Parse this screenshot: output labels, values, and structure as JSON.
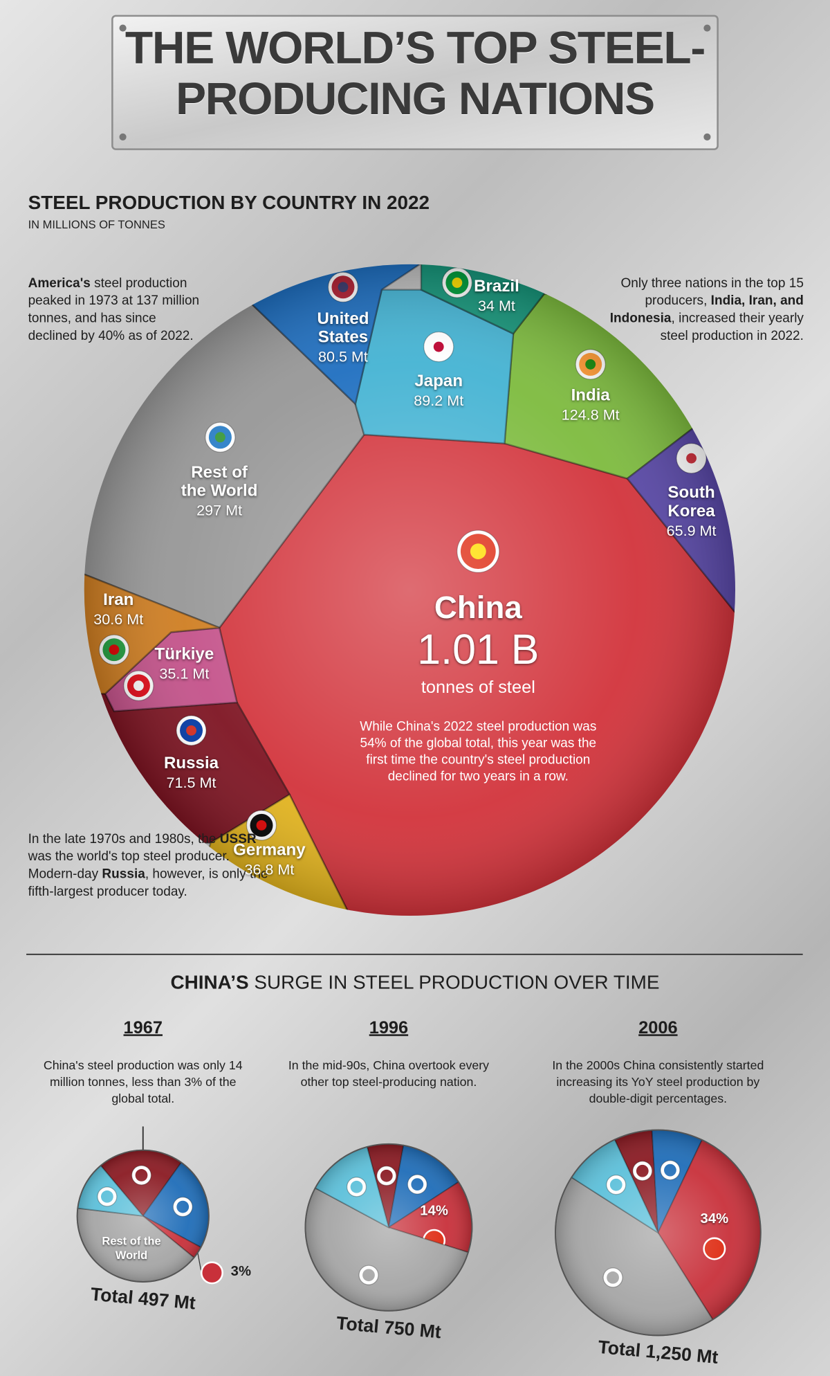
{
  "header": {
    "title": "THE WORLD’S TOP STEEL-PRODUCING NATIONS"
  },
  "chart_data": [
    {
      "type": "voronoi",
      "title": "STEEL PRODUCTION BY COUNTRY IN 2022",
      "subtitle": "IN MILLIONS OF TONNES",
      "categories": [
        "China",
        "Rest of the World",
        "India",
        "Japan",
        "United States",
        "Russia",
        "South Korea",
        "Germany",
        "Türkiye",
        "Brazil",
        "Iran"
      ],
      "values": [
        1010,
        297,
        124.8,
        89.2,
        80.5,
        71.5,
        65.9,
        36.8,
        35.1,
        34,
        30.6
      ],
      "value_labels": [
        "1.01 B",
        "297 Mt",
        "124.8 Mt",
        "89.2 Mt",
        "80.5 Mt",
        "71.5 Mt",
        "65.9 Mt",
        "36.8 Mt",
        "35.1 Mt",
        "34 Mt",
        "30.6 Mt"
      ],
      "colors": [
        "#d2333b",
        "#979797",
        "#7dbb3e",
        "#44b3d3",
        "#1f6fc0",
        "#7e1422",
        "#5847a6",
        "#e3b41e",
        "#c4528a",
        "#17957a",
        "#cf7e22"
      ],
      "china_caption": "tonnes of steel",
      "china_note": "While China's 2022 steel production was 54% of the global total, this year was the first time the country's steel production declined for two years in a row.",
      "left_note": [
        "America's",
        " steel production peaked in 1973 at 137 million tonnes, and has since declined by 40% as of 2022."
      ],
      "right_note": [
        "Only three nations in the top 15 producers, ",
        "India, Iran, and Indonesia",
        ", increased their yearly steel production in 2022."
      ],
      "bottom_note": [
        "In the late 1970s and 1980s, the ",
        "USSR",
        " was the world's top steel producer. Modern-day ",
        "Russia",
        ", however, is only the fifth-largest producer today."
      ]
    },
    {
      "type": "pie",
      "title": "1967",
      "subtitle": "China's steel production was only 14 million tonnes, less than 3% of the global total.",
      "categories": [
        null,
        null,
        null,
        "Rest of the World",
        null
      ],
      "values": [
        21,
        23,
        3,
        41,
        12
      ],
      "value_labels": [
        null,
        null,
        "3%",
        null,
        null
      ],
      "colors": [
        "#8a1a22",
        "#1f6db8",
        "#c8303a",
        "#a6a6a6",
        "#5cc0da"
      ],
      "total_label": "Total 497 Mt"
    },
    {
      "type": "pie",
      "title": "1996",
      "subtitle": "In the mid-90s, China overtook every other top steel-producing nation.",
      "categories": [
        null,
        null,
        null,
        null,
        null
      ],
      "values": [
        7,
        13,
        14,
        53,
        13
      ],
      "value_labels": [
        null,
        null,
        "14%",
        null,
        null
      ],
      "colors": [
        "#8a1a22",
        "#1f6db8",
        "#c8303a",
        "#a6a6a6",
        "#5cc0da"
      ],
      "total_label": "Total 750 Mt"
    },
    {
      "type": "pie",
      "title": "2006",
      "subtitle": "In the 2000s China consistently started increasing its YoY steel production by double-digit percentages.",
      "categories": [
        null,
        null,
        null,
        null,
        null
      ],
      "values": [
        6,
        8,
        34,
        43,
        9
      ],
      "value_labels": [
        null,
        null,
        "34%",
        null,
        null
      ],
      "colors": [
        "#8a1a22",
        "#1f6db8",
        "#c8303a",
        "#a6a6a6",
        "#5cc0da"
      ],
      "total_label": "Total 1,250 Mt"
    }
  ],
  "section": {
    "title": [
      "CHINA’S",
      " SURGE IN STEEL PRODUCTION OVER TIME"
    ]
  }
}
